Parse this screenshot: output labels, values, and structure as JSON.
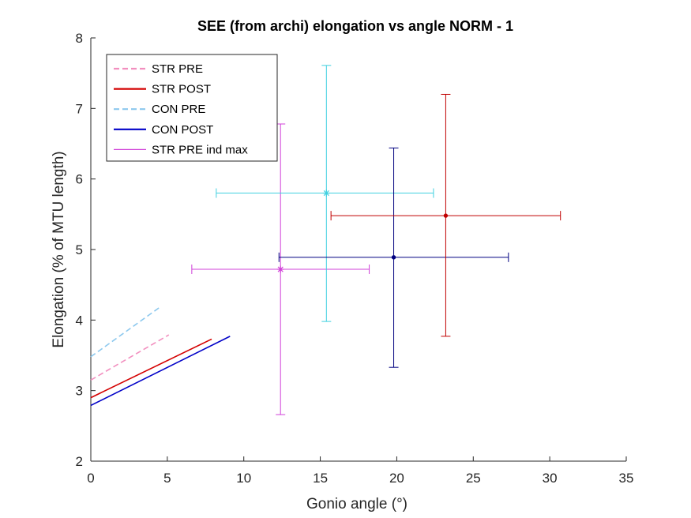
{
  "chart_data": {
    "type": "line",
    "title": "SEE (from archi) elongation vs angle NORM - 1",
    "xlabel": "Gonio angle (°)",
    "ylabel": "Elongation (% of MTU length)",
    "xlim": [
      0,
      35
    ],
    "ylim": [
      2,
      8
    ],
    "xticks": [
      0,
      5,
      10,
      15,
      20,
      25,
      30,
      35
    ],
    "yticks": [
      2,
      3,
      4,
      5,
      6,
      7,
      8
    ],
    "grid": false,
    "legend_position": "top-left",
    "series": [
      {
        "name": "STR PRE",
        "color": "#f28fbf",
        "dash": "dashed",
        "x": [
          0,
          5.1
        ],
        "y": [
          3.15,
          3.79
        ]
      },
      {
        "name": "STR POST",
        "color": "#d40000",
        "dash": "solid",
        "x": [
          0,
          7.9
        ],
        "y": [
          2.9,
          3.73
        ]
      },
      {
        "name": "CON PRE",
        "color": "#8cc8ee",
        "dash": "dashed",
        "x": [
          0,
          4.5
        ],
        "y": [
          3.48,
          4.18
        ]
      },
      {
        "name": "CON POST",
        "color": "#0000c8",
        "dash": "solid",
        "x": [
          0,
          9.1
        ],
        "y": [
          2.79,
          3.77
        ]
      },
      {
        "name": "STR PRE ind max",
        "color": "#d040d8",
        "dash": "solid",
        "x": [],
        "y": []
      }
    ],
    "error_points": [
      {
        "color": "#d040d8",
        "marker": "star",
        "x": 12.4,
        "y": 4.72,
        "xerr": [
          6.6,
          18.2
        ],
        "yerr": [
          2.66,
          6.78
        ]
      },
      {
        "color": "#40d0e0",
        "marker": "star",
        "x": 15.4,
        "y": 5.8,
        "xerr": [
          8.2,
          22.4
        ],
        "yerr": [
          3.98,
          7.61
        ]
      },
      {
        "color": "#000080",
        "marker": "dot",
        "x": 19.8,
        "y": 4.89,
        "xerr": [
          12.3,
          27.3
        ],
        "yerr": [
          3.33,
          6.44
        ]
      },
      {
        "color": "#c00000",
        "marker": "dot",
        "x": 23.2,
        "y": 5.48,
        "xerr": [
          15.7,
          30.7
        ],
        "yerr": [
          3.77,
          7.2
        ]
      }
    ]
  }
}
